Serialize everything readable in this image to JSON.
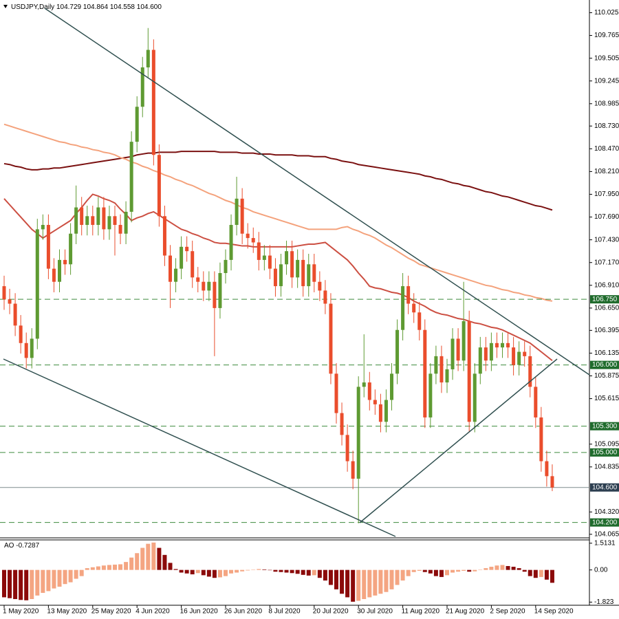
{
  "chart_data": {
    "type": "candlestick",
    "title": "USDJPY,Daily",
    "close_label": "104.600",
    "categories": [
      "1 May 2020",
      null,
      null,
      null,
      null,
      null,
      null,
      null,
      "13 May 2020",
      null,
      null,
      null,
      null,
      null,
      null,
      null,
      "25 May 2020",
      null,
      null,
      null,
      null,
      null,
      null,
      null,
      "4 Jun 2020",
      null,
      null,
      null,
      null,
      null,
      null,
      null,
      "16 Jun 2020",
      null,
      null,
      null,
      null,
      null,
      null,
      null,
      "26 Jun 2020",
      null,
      null,
      null,
      null,
      null,
      null,
      null,
      "8 Jul 2020",
      null,
      null,
      null,
      null,
      null,
      null,
      null,
      "20 Jul 2020",
      null,
      null,
      null,
      null,
      null,
      null,
      null,
      "30 Jul 2020",
      null,
      null,
      null,
      null,
      null,
      null,
      null,
      "11 Aug 2020",
      null,
      null,
      null,
      null,
      null,
      null,
      null,
      "21 Aug 2020",
      null,
      null,
      null,
      null,
      null,
      null,
      null,
      "2 Sep 2020",
      null,
      null,
      null,
      null,
      null,
      null,
      null,
      "14 Sep 2020",
      null,
      null,
      null
    ],
    "open": [
      106.9,
      106.75,
      106.7,
      106.45,
      106.25,
      106.08,
      106.3,
      107.55,
      107.6,
      107.1,
      106.95,
      107.2,
      107.15,
      107.5,
      107.8,
      107.6,
      107.7,
      107.6,
      107.8,
      107.55,
      107.7,
      107.6,
      107.5,
      107.75,
      108.55,
      108.95,
      109.4,
      109.6,
      108.4,
      107.7,
      107.25,
      106.95,
      107.1,
      107.35,
      107.3,
      107.0,
      106.95,
      106.85,
      106.95,
      106.65,
      107.05,
      107.2,
      107.6,
      107.9,
      107.5,
      107.45,
      107.4,
      107.2,
      107.25,
      107.1,
      106.9,
      107.15,
      107.3,
      107.0,
      107.2,
      106.9,
      107.15,
      106.95,
      106.85,
      106.7,
      105.9,
      105.45,
      105.2,
      104.9,
      104.7,
      105.75,
      105.8,
      105.6,
      105.55,
      105.35,
      105.6,
      105.9,
      106.4,
      106.9,
      106.7,
      106.6,
      106.4,
      105.4,
      105.9,
      106.1,
      105.8,
      105.95,
      106.3,
      106.05,
      106.5,
      105.35,
      105.9,
      106.2,
      106.05,
      106.25,
      106.2,
      106.25,
      106.2,
      106.0,
      106.15,
      106.1,
      105.75,
      105.4,
      104.9,
      104.729
    ],
    "high": [
      107.02,
      106.87,
      106.82,
      106.57,
      106.37,
      106.42,
      107.67,
      107.72,
      107.72,
      107.22,
      107.32,
      107.32,
      107.62,
      108.05,
      107.92,
      107.82,
      107.82,
      107.92,
      107.92,
      107.82,
      107.82,
      107.72,
      107.87,
      108.67,
      109.07,
      109.52,
      109.85,
      109.72,
      108.52,
      107.82,
      107.37,
      107.22,
      107.47,
      107.47,
      107.42,
      107.12,
      107.07,
      107.07,
      107.07,
      107.17,
      107.32,
      107.72,
      108.15,
      108.02,
      107.62,
      107.57,
      107.52,
      107.37,
      107.37,
      107.22,
      107.27,
      107.42,
      107.42,
      107.32,
      107.32,
      107.27,
      107.27,
      107.07,
      106.97,
      106.82,
      106.02,
      105.57,
      105.32,
      105.02,
      105.87,
      106.35,
      105.92,
      105.72,
      105.67,
      105.72,
      106.02,
      106.52,
      107.05,
      107.02,
      106.82,
      106.72,
      106.52,
      106.02,
      106.22,
      106.22,
      106.07,
      106.42,
      106.42,
      106.95,
      106.62,
      106.02,
      106.32,
      106.32,
      106.37,
      106.37,
      106.37,
      106.37,
      106.32,
      106.27,
      106.27,
      106.22,
      105.87,
      105.52,
      105.02,
      104.864
    ],
    "low": [
      106.63,
      106.58,
      106.33,
      106.13,
      105.96,
      105.96,
      106.18,
      107.43,
      106.98,
      106.83,
      106.83,
      107.03,
      107.03,
      107.38,
      107.48,
      107.48,
      107.48,
      107.48,
      107.43,
      107.43,
      107.25,
      107.38,
      107.38,
      107.63,
      108.43,
      108.83,
      109.28,
      108.28,
      107.58,
      107.13,
      106.65,
      106.83,
      106.98,
      107.18,
      106.88,
      106.83,
      106.73,
      106.73,
      106.1,
      106.53,
      106.93,
      107.08,
      107.48,
      107.38,
      107.33,
      107.28,
      107.08,
      107.08,
      106.98,
      106.78,
      106.78,
      107.03,
      106.88,
      106.88,
      106.78,
      106.78,
      106.83,
      106.73,
      106.58,
      105.78,
      105.33,
      105.08,
      104.78,
      104.58,
      104.19,
      105.63,
      105.48,
      105.43,
      105.23,
      105.23,
      105.48,
      105.78,
      106.28,
      106.58,
      106.48,
      106.28,
      105.28,
      105.28,
      105.78,
      105.68,
      105.68,
      105.83,
      105.93,
      105.93,
      105.23,
      105.23,
      105.78,
      105.93,
      105.93,
      106.08,
      106.08,
      106.08,
      105.88,
      105.88,
      105.98,
      105.63,
      105.28,
      104.78,
      104.61,
      104.558
    ],
    "close": [
      106.75,
      106.7,
      106.45,
      106.25,
      106.08,
      106.3,
      107.55,
      107.6,
      107.1,
      106.95,
      107.2,
      107.15,
      107.5,
      107.8,
      107.6,
      107.7,
      107.6,
      107.8,
      107.55,
      107.7,
      107.6,
      107.5,
      107.75,
      108.55,
      108.95,
      109.4,
      109.6,
      108.4,
      107.7,
      107.25,
      106.95,
      107.1,
      107.35,
      107.3,
      107.0,
      106.95,
      106.85,
      106.95,
      106.65,
      107.05,
      107.2,
      107.6,
      107.9,
      107.5,
      107.45,
      107.4,
      107.2,
      107.25,
      107.1,
      106.9,
      107.15,
      107.3,
      107.0,
      107.2,
      106.9,
      107.15,
      106.95,
      106.85,
      106.7,
      105.9,
      105.45,
      105.2,
      104.9,
      104.7,
      105.75,
      105.8,
      105.6,
      105.55,
      105.35,
      105.6,
      105.9,
      106.4,
      106.9,
      106.7,
      106.6,
      106.4,
      105.4,
      105.9,
      106.1,
      105.8,
      105.95,
      106.3,
      106.05,
      106.5,
      105.35,
      105.9,
      106.2,
      106.05,
      106.25,
      106.2,
      106.25,
      106.2,
      106.0,
      106.15,
      106.1,
      105.75,
      105.4,
      104.9,
      104.729,
      104.6
    ],
    "up_color": "#5e9a32",
    "down_color": "#ea4d2c",
    "moving_averages": [
      {
        "color": "#7a1010",
        "values": [
          108.3,
          108.29,
          108.27,
          108.26,
          108.24,
          108.23,
          108.23,
          108.24,
          108.24,
          108.25,
          108.25,
          108.26,
          108.27,
          108.28,
          108.29,
          108.3,
          108.31,
          108.32,
          108.33,
          108.34,
          108.35,
          108.36,
          108.37,
          108.38,
          108.4,
          108.41,
          108.42,
          108.42,
          108.43,
          108.43,
          108.43,
          108.43,
          108.44,
          108.44,
          108.44,
          108.44,
          108.44,
          108.44,
          108.44,
          108.43,
          108.43,
          108.43,
          108.43,
          108.42,
          108.42,
          108.42,
          108.41,
          108.41,
          108.41,
          108.4,
          108.4,
          108.4,
          108.4,
          108.39,
          108.39,
          108.39,
          108.38,
          108.38,
          108.38,
          108.36,
          108.35,
          108.33,
          108.32,
          108.31,
          108.29,
          108.28,
          108.27,
          108.26,
          108.25,
          108.24,
          108.23,
          108.22,
          108.21,
          108.2,
          108.19,
          108.18,
          108.16,
          108.15,
          108.13,
          108.12,
          108.1,
          108.08,
          108.07,
          108.05,
          108.04,
          108.02,
          108.0,
          107.98,
          107.97,
          107.95,
          107.93,
          107.92,
          107.9,
          107.88,
          107.86,
          107.84,
          107.82,
          107.81,
          107.79,
          107.77
        ]
      },
      {
        "color": "#f4a27c",
        "values": [
          108.75,
          108.73,
          108.71,
          108.69,
          108.67,
          108.65,
          108.63,
          108.61,
          108.59,
          108.57,
          108.55,
          108.54,
          108.52,
          108.51,
          108.49,
          108.48,
          108.46,
          108.45,
          108.43,
          108.42,
          108.4,
          108.37,
          108.35,
          108.32,
          108.3,
          108.27,
          108.25,
          108.22,
          108.2,
          108.17,
          108.15,
          108.12,
          108.1,
          108.07,
          108.05,
          108.02,
          107.99,
          107.96,
          107.94,
          107.91,
          107.88,
          107.86,
          107.83,
          107.8,
          107.78,
          107.75,
          107.73,
          107.71,
          107.69,
          107.67,
          107.65,
          107.63,
          107.61,
          107.59,
          107.57,
          107.55,
          107.55,
          107.55,
          107.55,
          107.55,
          107.55,
          107.57,
          107.58,
          107.55,
          107.53,
          107.5,
          107.48,
          107.45,
          107.41,
          107.37,
          107.34,
          107.3,
          107.26,
          107.22,
          107.19,
          107.15,
          107.13,
          107.11,
          107.09,
          107.07,
          107.05,
          107.03,
          107.01,
          106.99,
          106.97,
          106.95,
          106.93,
          106.91,
          106.9,
          106.88,
          106.86,
          106.85,
          106.83,
          106.82,
          106.8,
          106.79,
          106.77,
          106.76,
          106.74,
          106.73
        ]
      },
      {
        "color": "#cc4f42",
        "values": [
          107.9,
          107.83,
          107.76,
          107.69,
          107.62,
          107.55,
          107.5,
          107.45,
          107.49,
          107.53,
          107.57,
          107.61,
          107.65,
          107.73,
          107.8,
          107.88,
          107.95,
          107.93,
          107.9,
          107.88,
          107.85,
          107.78,
          107.72,
          107.65,
          107.68,
          107.7,
          107.73,
          107.75,
          107.71,
          107.67,
          107.63,
          107.59,
          107.55,
          107.53,
          107.5,
          107.48,
          107.45,
          107.43,
          107.4,
          107.39,
          107.39,
          107.38,
          107.37,
          107.36,
          107.36,
          107.35,
          107.35,
          107.35,
          107.35,
          107.35,
          107.35,
          107.35,
          107.35,
          107.36,
          107.37,
          107.38,
          107.38,
          107.39,
          107.4,
          107.35,
          107.3,
          107.25,
          107.2,
          107.13,
          107.05,
          106.98,
          106.9,
          106.88,
          106.87,
          106.85,
          106.83,
          106.82,
          106.8,
          106.77,
          106.73,
          106.7,
          106.67,
          106.63,
          106.6,
          106.58,
          106.57,
          106.55,
          106.53,
          106.52,
          106.5,
          106.48,
          106.47,
          106.45,
          106.43,
          106.42,
          106.4,
          106.37,
          106.34,
          106.31,
          106.28,
          106.25,
          106.2,
          106.15,
          106.1,
          106.05
        ]
      }
    ],
    "levels": [
      {
        "value": 106.75,
        "label": "106.750"
      },
      {
        "value": 106.0,
        "label": "106.000"
      },
      {
        "value": 105.3,
        "label": "105.300"
      },
      {
        "value": 105.0,
        "label": "105.000"
      },
      {
        "value": 104.2,
        "label": "104.200"
      }
    ],
    "level_color": "#3c8a3c",
    "ylim": [
      104.04,
      110.17
    ],
    "yticks": [
      110.025,
      109.765,
      109.505,
      109.245,
      108.985,
      {
        "value": 108.73,
        "label": "108.730"
      },
      {
        "value": 108.47,
        "label": "108.470"
      },
      {
        "value": 108.21,
        "label": "108.210"
      },
      {
        "value": 107.95,
        "label": "107.950"
      },
      {
        "value": 107.69,
        "label": "107.690"
      },
      {
        "value": 107.43,
        "label": "107.430"
      },
      {
        "value": 107.17,
        "label": "107.170"
      },
      {
        "value": 106.91,
        "label": "106.910"
      },
      {
        "value": 106.65,
        "label": "106.650"
      },
      106.395,
      106.135,
      105.875,
      105.615,
      105.095,
      104.835,
      {
        "value": 104.32,
        "label": "104.320"
      },
      104.065
    ],
    "indicator": {
      "name": "AO",
      "values": [
        -1.55,
        -1.6,
        -1.65,
        -1.7,
        -1.72,
        -1.65,
        -1.45,
        -1.3,
        -1.2,
        -1.05,
        -0.95,
        -0.8,
        -0.7,
        -0.5,
        -0.35,
        0.1,
        0.15,
        0.2,
        0.25,
        0.28,
        0.3,
        0.32,
        0.45,
        0.7,
        0.95,
        1.25,
        1.48,
        1.55,
        1.25,
        0.85,
        0.4,
        0.05,
        -0.15,
        -0.2,
        -0.25,
        -0.18,
        -0.3,
        -0.38,
        -0.45,
        -0.42,
        -0.35,
        -0.2,
        -0.15,
        -0.08,
        -0.03,
        0.02,
        0.05,
        0.03,
        -0.02,
        -0.1,
        -0.12,
        -0.15,
        -0.18,
        -0.22,
        -0.28,
        -0.32,
        -0.3,
        -0.45,
        -0.6,
        -0.85,
        -1.1,
        -1.35,
        -1.55,
        -1.8,
        -1.75,
        -1.65,
        -1.55,
        -1.45,
        -1.35,
        -1.25,
        -1.1,
        -0.85,
        -0.6,
        -0.35,
        -0.12,
        -0.05,
        -0.12,
        -0.2,
        -0.35,
        -0.4,
        -0.3,
        -0.15,
        -0.1,
        -0.05,
        -0.1,
        -0.08,
        0.02,
        0.1,
        0.18,
        0.25,
        0.28,
        0.22,
        0.18,
        0.1,
        -0.1,
        -0.35,
        -0.45,
        -0.4,
        -0.55,
        -0.7287
      ],
      "up_color": "#f4a582",
      "down_color": "#8b0a0a",
      "ylim": [
        -2.0,
        1.7
      ],
      "yticks": [
        1.5131,
        {
          "value": 0,
          "label": "0.00"
        },
        -1.823
      ]
    }
  }
}
